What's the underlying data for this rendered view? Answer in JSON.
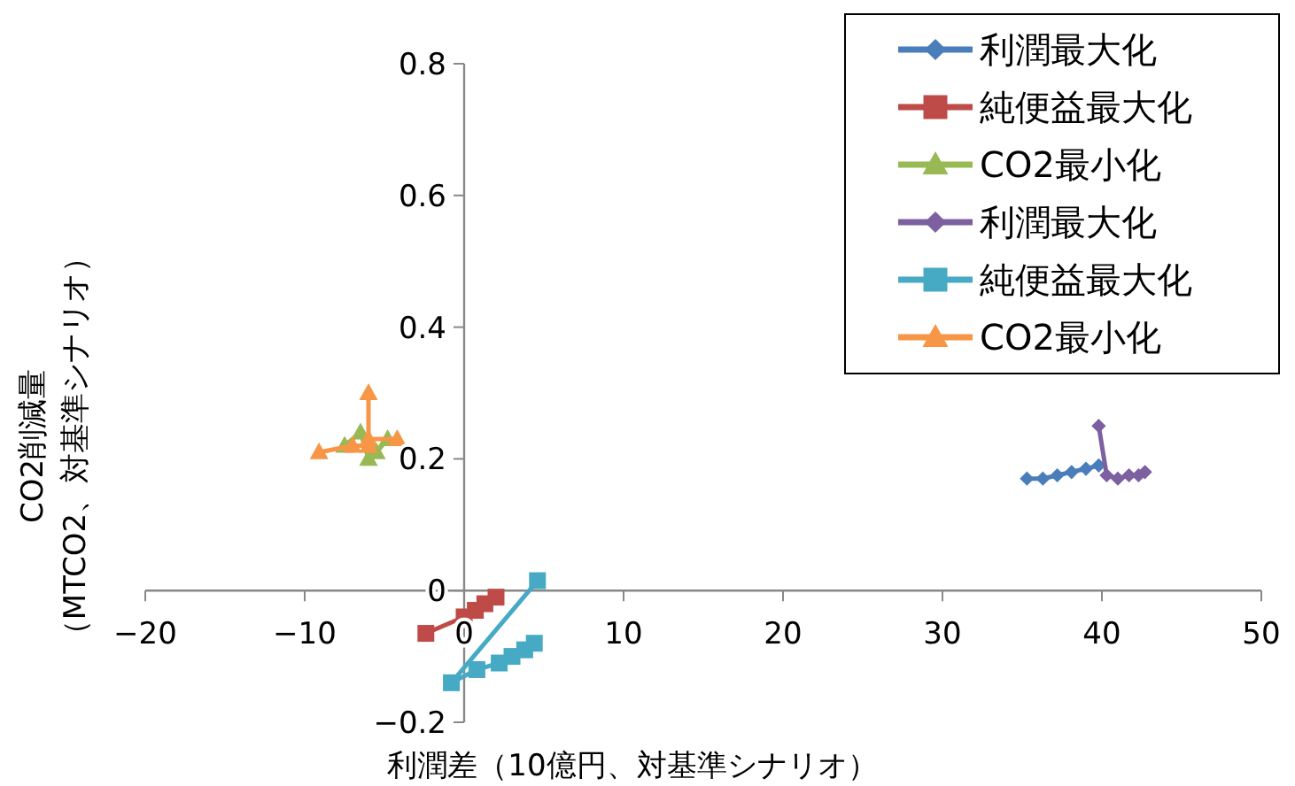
{
  "chart_data": {
    "type": "line",
    "xlabel": "利潤差（10億円、対基準シナリオ）",
    "ylabel": "CO2削減量（MTCO2、対基準シナリオ）",
    "xlim": [
      -20,
      50
    ],
    "ylim": [
      -0.2,
      0.8
    ],
    "xticks": [
      -20,
      -10,
      0,
      10,
      20,
      30,
      40,
      50
    ],
    "yticks": [
      -0.2,
      0,
      0.2,
      0.4,
      0.6,
      0.8
    ],
    "grid": false,
    "legend": "top right",
    "series": [
      {
        "name": "利潤最大化",
        "color": "#4a7ebb",
        "marker": "diamond",
        "x": [
          35.3,
          36.3,
          37.2,
          38.1,
          39,
          39.8
        ],
        "values": [
          0.17,
          0.17,
          0.175,
          0.18,
          0.185,
          0.19
        ]
      },
      {
        "name": "純便益最大化",
        "color": "#be4b48",
        "marker": "square",
        "x": [
          -2.4,
          0,
          0.7,
          1.3,
          2
        ],
        "values": [
          -0.065,
          -0.04,
          -0.03,
          -0.02,
          -0.01
        ]
      },
      {
        "name": "CO2最小化",
        "color": "#98b954",
        "marker": "triangle",
        "x": [
          -7.5,
          -6.5,
          -6,
          -5.5,
          -4.8
        ],
        "values": [
          0.22,
          0.24,
          0.2,
          0.21,
          0.23
        ]
      },
      {
        "name": "利潤最大化",
        "color": "#7d60a0",
        "marker": "diamond",
        "x": [
          39.8,
          40.3,
          41,
          41.7,
          42.3,
          42.7
        ],
        "values": [
          0.25,
          0.175,
          0.17,
          0.175,
          0.175,
          0.18
        ]
      },
      {
        "name": "純便益最大化",
        "color": "#46aac5",
        "marker": "square",
        "x": [
          4.6,
          -0.8,
          0.8,
          2.2,
          3,
          3.8,
          4.4
        ],
        "values": [
          0.015,
          -0.14,
          -0.12,
          -0.11,
          -0.1,
          -0.09,
          -0.08
        ]
      },
      {
        "name": "CO2最小化",
        "color": "#f79646",
        "marker": "triangle",
        "x": [
          -9.1,
          -7,
          -6,
          -6,
          -6,
          -4.2
        ],
        "values": [
          0.21,
          0.22,
          0.22,
          0.3,
          0.23,
          0.23
        ]
      }
    ]
  }
}
